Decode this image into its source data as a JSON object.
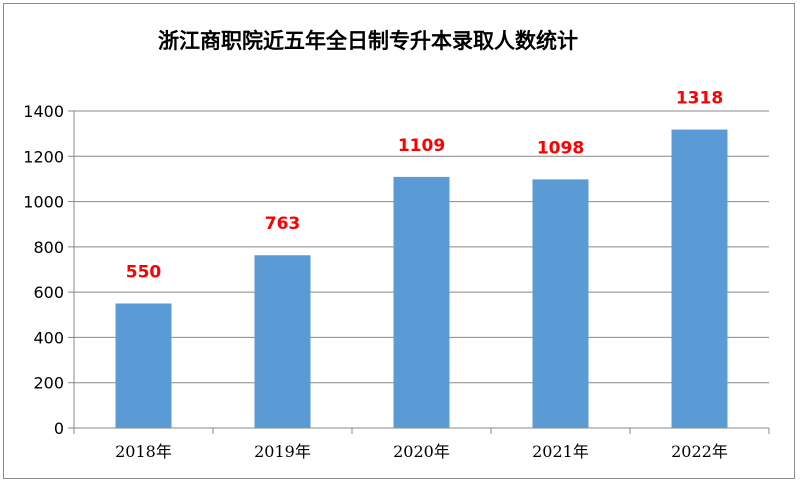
{
  "chart_data": {
    "type": "bar",
    "title": "浙江商职院近五年全日制专升本录取人数统计",
    "xlabel": "",
    "ylabel": "",
    "categories": [
      "2018年",
      "2019年",
      "2020年",
      "2021年",
      "2022年"
    ],
    "values": [
      550,
      763,
      1109,
      1098,
      1318
    ],
    "ylim": [
      0,
      1400
    ],
    "yticks": [
      0,
      200,
      400,
      600,
      800,
      1000,
      1200,
      1400
    ],
    "grid": true,
    "legend": "none",
    "bar_color": "#5b9bd5",
    "label_color": "#ff0000",
    "grid_color": "#888888"
  }
}
